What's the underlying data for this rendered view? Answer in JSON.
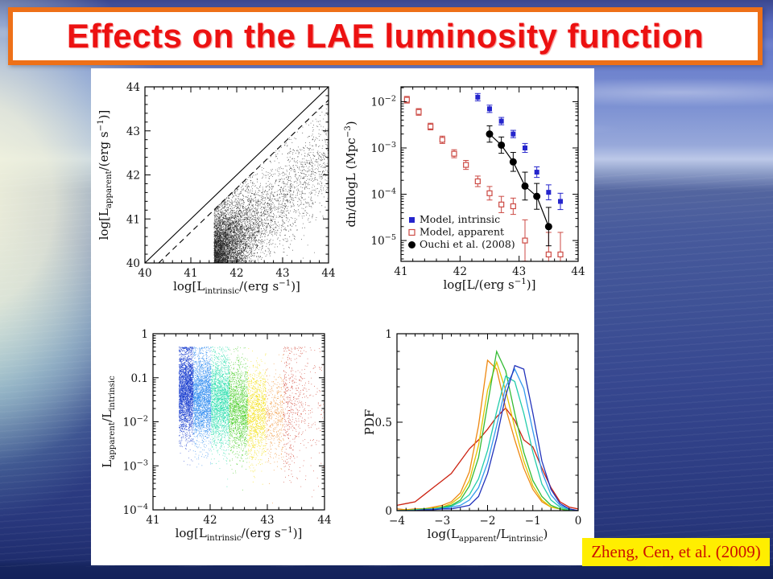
{
  "slide": {
    "title": "Effects on the LAE luminosity function",
    "citation": "Zheng, Cen, et al. (2009)",
    "colors": {
      "title_text": "#ec1111",
      "title_border": "#ee7018",
      "banner_bg": "#ffffff",
      "panel_bg": "#ffffff",
      "citation_bg": "#ffee00",
      "citation_text": "#cc1100"
    }
  },
  "chart_data": [
    {
      "id": "apparent-vs-intrinsic-scatter",
      "type": "scatter",
      "xlabel": [
        {
          "t": "log[L"
        },
        {
          "t": "intrinsic",
          "sub": true
        },
        {
          "t": "/(erg s"
        },
        {
          "t": "−1",
          "sup": true
        },
        {
          "t": ")]"
        }
      ],
      "ylabel": [
        {
          "t": "log[L"
        },
        {
          "t": "apparent",
          "sub": true
        },
        {
          "t": "/(erg s"
        },
        {
          "t": "−1",
          "sup": true
        },
        {
          "t": ")]"
        }
      ],
      "xlim": [
        40,
        44
      ],
      "ylim": [
        40,
        44
      ],
      "xticks": {
        "major": [
          40,
          41,
          42,
          43,
          44
        ],
        "labels": [
          "40",
          "41",
          "42",
          "43",
          "44"
        ],
        "minor_step": 0.2
      },
      "yticks": {
        "major": [
          40,
          41,
          42,
          43,
          44
        ],
        "labels": [
          "40",
          "41",
          "42",
          "43",
          "44"
        ],
        "minor_step": 0.2
      },
      "ref_lines": [
        {
          "name": "one-to-one-line",
          "style": "solid",
          "x": [
            40,
            44
          ],
          "y": [
            40,
            44
          ]
        },
        {
          "name": "offset-dashed-line",
          "style": "dashed",
          "x": [
            40.3,
            44
          ],
          "y": [
            40,
            43.7
          ]
        }
      ],
      "scatter_model": {
        "n": 9000,
        "x_min": 41.5,
        "x_max": 44,
        "x_exp_scale": 0.32,
        "x_uniform_frac": 0.22,
        "d_mean": 1.55,
        "d_sigma": 0.55,
        "d_min": 0.28,
        "color": "#111111"
      }
    },
    {
      "id": "luminosity-function",
      "type": "scatter",
      "xlabel": [
        {
          "t": "log[L/(erg s"
        },
        {
          "t": "−1",
          "sup": true
        },
        {
          "t": ")]"
        }
      ],
      "ylabel": [
        {
          "t": "dn/dlogL (Mpc"
        },
        {
          "t": "−3",
          "sup": true
        },
        {
          "t": ")"
        }
      ],
      "xlim": [
        41,
        44
      ],
      "ylim_log": [
        -5.45,
        -1.68
      ],
      "xticks": {
        "major": [
          41,
          42,
          43,
          44
        ],
        "labels": [
          "41",
          "42",
          "43",
          "44"
        ],
        "minor_step": 0.2
      },
      "yticks": {
        "major_exp": [
          -2,
          -3,
          -4,
          -5
        ],
        "labels": [
          "10^−2",
          "10^−3",
          "10^−4",
          "10^−5"
        ]
      },
      "series": [
        {
          "name": "Model, intrinsic",
          "marker": "filled-square",
          "color": "#2525cc",
          "points": [
            [
              42.3,
              0.0125,
              1.2
            ],
            [
              42.5,
              0.007,
              1.2
            ],
            [
              42.7,
              0.0038,
              1.2
            ],
            [
              42.9,
              0.002,
              1.2
            ],
            [
              43.1,
              0.001,
              1.25
            ],
            [
              43.3,
              0.0003,
              1.3
            ],
            [
              43.5,
              0.00011,
              1.45
            ],
            [
              43.7,
              7e-05,
              1.5
            ]
          ]
        },
        {
          "name": "Model, apparent",
          "marker": "open-square",
          "color": "#cc4a44",
          "points": [
            [
              41.1,
              0.011,
              1.18
            ],
            [
              41.3,
              0.006,
              1.18
            ],
            [
              41.5,
              0.0029,
              1.18
            ],
            [
              41.7,
              0.0015,
              1.2
            ],
            [
              41.9,
              0.00075,
              1.22
            ],
            [
              42.1,
              0.00043,
              1.25
            ],
            [
              42.3,
              0.00019,
              1.3
            ],
            [
              42.5,
              0.000105,
              1.4
            ],
            [
              42.7,
              6e-05,
              1.5
            ],
            [
              42.9,
              5.5e-05,
              1.5
            ],
            [
              43.1,
              1e-05,
              2.8
            ],
            [
              43.5,
              5e-06,
              3.0
            ],
            [
              43.7,
              5e-06,
              3.0
            ]
          ]
        },
        {
          "name": "Ouchi et al. (2008)",
          "marker": "filled-circle",
          "color": "#000000",
          "connect": true,
          "points": [
            [
              42.5,
              0.002,
              1.5
            ],
            [
              42.7,
              0.00115,
              1.5
            ],
            [
              42.9,
              0.0005,
              1.6
            ],
            [
              43.1,
              0.00015,
              2.0
            ],
            [
              43.3,
              9e-05,
              1.9
            ],
            [
              43.5,
              2e-05,
              2.6
            ]
          ]
        }
      ],
      "legend": [
        "Model, intrinsic",
        "Model, apparent",
        "Ouchi et al. (2008)"
      ]
    },
    {
      "id": "ratio-vs-intrinsic-scatter",
      "type": "scatter",
      "xlabel": [
        {
          "t": "log[L"
        },
        {
          "t": "intrinsic",
          "sub": true
        },
        {
          "t": "/(erg s"
        },
        {
          "t": "−1",
          "sup": true
        },
        {
          "t": ")]"
        }
      ],
      "ylabel": [
        {
          "t": "L"
        },
        {
          "t": "apparent",
          "sub": true
        },
        {
          "t": "/L"
        },
        {
          "t": "intrinsic",
          "sub": true
        }
      ],
      "xlim": [
        41,
        44
      ],
      "ylim_log": [
        -4,
        0
      ],
      "xticks": {
        "major": [
          41,
          42,
          43,
          44
        ],
        "labels": [
          "41",
          "42",
          "43",
          "44"
        ],
        "minor_step": 0.2
      },
      "yticks": {
        "major_exp": [
          0,
          -1,
          -2,
          -3,
          -4
        ],
        "labels": [
          "1",
          "0.1",
          "10^−2",
          "10^−3",
          "10^−4"
        ]
      },
      "d_min": 0.3,
      "bands": [
        {
          "x0": 41.45,
          "x1": 41.7,
          "n": 2800,
          "color": "#0f35cc",
          "d_mean": 1.3,
          "d_sigma": 0.5
        },
        {
          "x0": 41.7,
          "x1": 42.01,
          "n": 2600,
          "color": "#2e8bf0",
          "d_mean": 1.42,
          "d_sigma": 0.5
        },
        {
          "x0": 42.01,
          "x1": 42.33,
          "n": 2200,
          "color": "#22ddaa",
          "d_mean": 1.52,
          "d_sigma": 0.5
        },
        {
          "x0": 42.33,
          "x1": 42.65,
          "n": 1700,
          "color": "#44cc22",
          "d_mean": 1.7,
          "d_sigma": 0.5
        },
        {
          "x0": 42.65,
          "x1": 42.97,
          "n": 1200,
          "color": "#f2dd00",
          "d_mean": 1.82,
          "d_sigma": 0.52
        },
        {
          "x0": 42.97,
          "x1": 43.28,
          "n": 450,
          "color": "#ee8822",
          "d_mean": 1.92,
          "d_sigma": 0.55
        },
        {
          "x0": 43.28,
          "x1": 44.0,
          "n": 650,
          "color": "#cc3322",
          "d_mean": 1.7,
          "d_sigma": 0.8,
          "x_exp_scale": 0.28
        }
      ]
    },
    {
      "id": "ratio-pdf",
      "type": "line",
      "xlabel": [
        {
          "t": "log(L"
        },
        {
          "t": "apparent",
          "sub": true
        },
        {
          "t": "/L"
        },
        {
          "t": "intrinsic",
          "sub": true
        },
        {
          "t": ")"
        }
      ],
      "ylabel": [
        {
          "t": "PDF"
        }
      ],
      "xlim": [
        -4,
        0
      ],
      "ylim": [
        0,
        1
      ],
      "xticks": {
        "major": [
          -4,
          -3,
          -2,
          -1,
          0
        ],
        "labels": [
          "−4",
          "−3",
          "−2",
          "−1",
          "0"
        ],
        "minor_step": 0.2
      },
      "yticks": {
        "major": [
          0,
          0.5,
          1
        ],
        "labels": [
          "0",
          "0.5",
          "1"
        ],
        "minor_step": 0.1
      },
      "x_start": -4,
      "x_step": 0.2,
      "series": [
        {
          "name": "curve-red",
          "color": "#cc2211",
          "values": [
            0.03,
            0.04,
            0.05,
            0.09,
            0.13,
            0.17,
            0.21,
            0.28,
            0.35,
            0.4,
            0.46,
            0.53,
            0.58,
            0.51,
            0.4,
            0.36,
            0.24,
            0.13,
            0.05,
            0.02,
            0.01
          ]
        },
        {
          "name": "curve-orange",
          "color": "#ee8811",
          "values": [
            0.01,
            0.005,
            0.01,
            0.01,
            0.02,
            0.03,
            0.05,
            0.1,
            0.22,
            0.48,
            0.85,
            0.8,
            0.58,
            0.4,
            0.24,
            0.12,
            0.05,
            0.02,
            0.01,
            0,
            0
          ]
        },
        {
          "name": "curve-gold",
          "color": "#e2c400",
          "values": [
            0,
            0.005,
            0.005,
            0.01,
            0.015,
            0.02,
            0.04,
            0.08,
            0.17,
            0.37,
            0.68,
            0.84,
            0.68,
            0.47,
            0.28,
            0.14,
            0.06,
            0.02,
            0.01,
            0,
            0
          ]
        },
        {
          "name": "curve-green",
          "color": "#33bb33",
          "values": [
            0,
            0,
            0.005,
            0.01,
            0.01,
            0.02,
            0.03,
            0.06,
            0.14,
            0.3,
            0.6,
            0.9,
            0.79,
            0.55,
            0.33,
            0.17,
            0.08,
            0.03,
            0.01,
            0,
            0
          ]
        },
        {
          "name": "curve-teal",
          "color": "#22ccaa",
          "values": [
            0,
            0,
            0.005,
            0.005,
            0.01,
            0.015,
            0.025,
            0.05,
            0.09,
            0.18,
            0.34,
            0.56,
            0.76,
            0.73,
            0.55,
            0.33,
            0.15,
            0.06,
            0.02,
            0.005,
            0
          ]
        },
        {
          "name": "curve-skyblue",
          "color": "#3399ee",
          "values": [
            0,
            0,
            0,
            0.005,
            0.01,
            0.01,
            0.02,
            0.03,
            0.06,
            0.13,
            0.27,
            0.48,
            0.7,
            0.8,
            0.69,
            0.45,
            0.22,
            0.09,
            0.03,
            0.01,
            0
          ]
        },
        {
          "name": "curve-navy",
          "color": "#2233bb",
          "values": [
            0,
            0,
            0,
            0.005,
            0.005,
            0.01,
            0.01,
            0.02,
            0.03,
            0.08,
            0.21,
            0.41,
            0.65,
            0.82,
            0.8,
            0.55,
            0.28,
            0.12,
            0.04,
            0.01,
            0
          ]
        }
      ]
    }
  ]
}
